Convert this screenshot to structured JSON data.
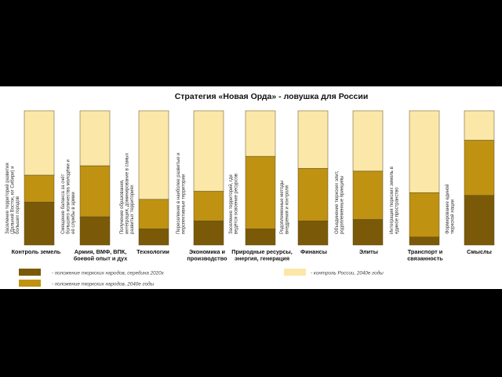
{
  "chart_data": {
    "type": "bar",
    "stacked": true,
    "title": "Стратегия «Новая Орда» - ловушка для России",
    "ylim": [
      0,
      100
    ],
    "colors": {
      "dark": "#7a5a08",
      "mid": "#bf9212",
      "light": "#fbe7a8",
      "stroke": "#5a4a20"
    },
    "categories": [
      {
        "label": [
          "Контроль земель"
        ],
        "dark": 32,
        "mid": 52,
        "note": [
          "Заселение территорий развития",
          "(Дальний Восток, юг Сибири) и",
          "больших городов"
        ]
      },
      {
        "label": [
          "Армия, ВМФ, ВПК,",
          "боевой опыт и дух"
        ],
        "dark": 21,
        "mid": 59,
        "note": [
          "Смещение баланса за счёт",
          "большего количества молодёжи и",
          "её службы в армии"
        ]
      },
      {
        "label": [
          "Технологии"
        ],
        "dark": 12,
        "mid": 34,
        "note": [
          "Получение образования,",
          "интеграция, доминирование в самых",
          "развитых территориях"
        ]
      },
      {
        "label": [
          "Экономика и",
          "производство"
        ],
        "dark": 18,
        "mid": 40,
        "note": [
          "Переселение в наиболее развитые и",
          "перспективные территории"
        ]
      },
      {
        "label": [
          "Природные ресурсы,",
          "энергия, генерация"
        ],
        "dark": 12,
        "mid": 66,
        "note": [
          "Заселение территорий, где",
          "ведётся освоение ресурсов"
        ]
      },
      {
        "label": [
          "Финансы"
        ],
        "dark": 18,
        "mid": 57,
        "note": [
          "Родоплеменные методы",
          "внедрения и контроля"
        ]
      },
      {
        "label": [
          "Элиты"
        ],
        "dark": 19,
        "mid": 55,
        "note": [
          "Объединение тюркских элит,",
          "родоплеменные принципы"
        ]
      },
      {
        "label": [
          "Транспорт и",
          "связанность"
        ],
        "dark": 6,
        "mid": 39,
        "note": [
          "Интеграция тюркских земель в",
          "единое пространство"
        ]
      },
      {
        "label": [
          "Смыслы"
        ],
        "dark": 37,
        "mid": 78,
        "note": [
          "Формирование единой",
          "тюркской нации"
        ]
      }
    ],
    "legend": {
      "dark": "- положение тюркских народов, середина 2020х",
      "mid": "- положение тюркских народов, 2040е годы",
      "light": "- контроль России, 2040е годы"
    }
  }
}
